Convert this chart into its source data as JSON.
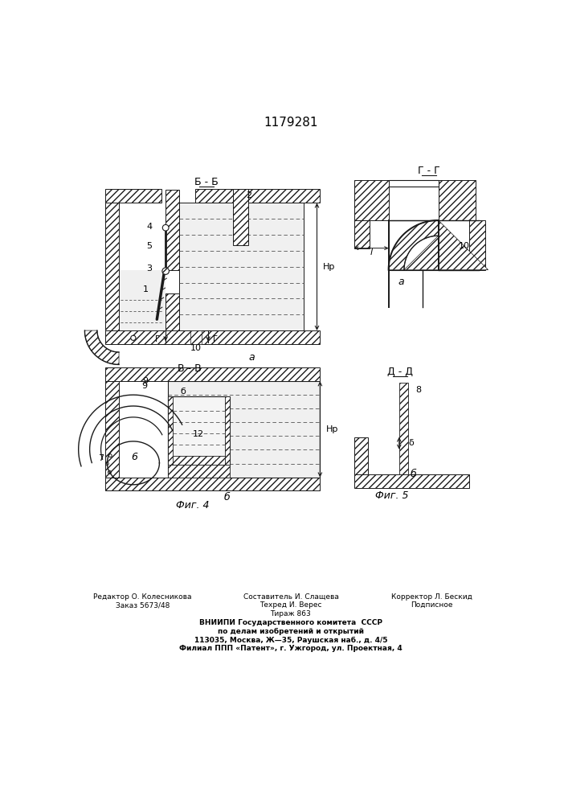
{
  "patent_number": "1179281",
  "bg_color": "#ffffff",
  "lc": "#1a1a1a",
  "fig_bb_title": "Б - Б",
  "fig_vv_title": "В - В",
  "fig_gg_title": "Г - Г",
  "fig_dd_title": "Д - Д",
  "fig4_caption": "Фиг. 4",
  "fig5_caption": "Фиг. 5",
  "footer_col1_r1": "Редактор О. Колесникова",
  "footer_col1_r2": "Заказ 5673/48",
  "footer_col2_r1": "Составитель И. Слащева",
  "footer_col2_r2": "Техред И. Верес",
  "footer_col2_r3": "Тираж 863",
  "footer_col3_r1": "Корректор Л. Бескид",
  "footer_col3_r2": "Подписное",
  "footer_vnii1": "ВНИИПИ Государственного комитета  СССР",
  "footer_vnii2": "по делам изобретений и открытий",
  "footer_vnii3": "113035, Москва, Ж—35, Раушская наб., д. 4/5",
  "footer_vnii4": "Филиал ППП «Патент», г. Ужгород, ул. Проектная, 4"
}
